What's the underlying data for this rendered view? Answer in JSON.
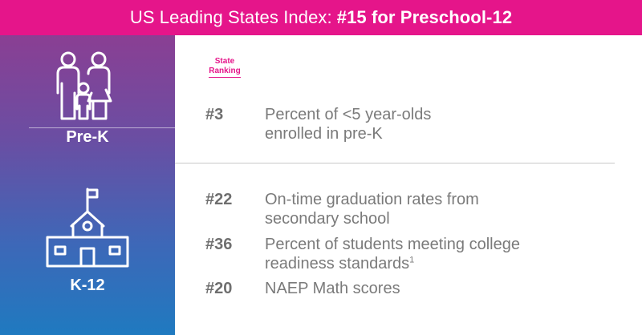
{
  "banner": {
    "title_prefix": "US Leading States Index:",
    "title_bold": "#15 for Preschool-12"
  },
  "categories": [
    {
      "label": "Pre-K",
      "icon": "family-icon"
    },
    {
      "label": "K-12",
      "icon": "school-icon"
    }
  ],
  "ranking_header": {
    "line1": "State",
    "line2": "Ranking"
  },
  "rows": [
    {
      "rank": "#3",
      "line1": "Percent of <5 year-olds",
      "line2": "enrolled in pre-K",
      "footnote": ""
    },
    {
      "rank": "#22",
      "line1": "On-time graduation rates from",
      "line2": "secondary school",
      "footnote": ""
    },
    {
      "rank": "#36",
      "line1": "Percent of students meeting college",
      "line2": "readiness standards",
      "footnote": "1"
    },
    {
      "rank": "#20",
      "line1": "NAEP Math scores",
      "line2": "",
      "footnote": ""
    }
  ],
  "colors": {
    "accent": "#e5158a",
    "gradient_top": "#8a3f93",
    "gradient_bottom": "#1f7ac0",
    "text_gray": "#7a7a7a"
  }
}
